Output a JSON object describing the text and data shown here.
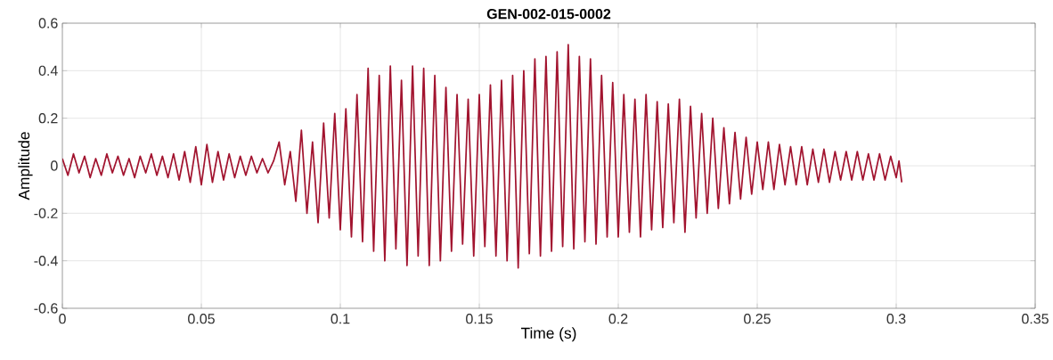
{
  "chart_data": {
    "type": "line",
    "title": "GEN-002-015-0002",
    "xlabel": "Time (s)",
    "ylabel": "Amplitude",
    "xlim": [
      0,
      0.35
    ],
    "ylim": [
      -0.6,
      0.6
    ],
    "xticks": [
      0,
      0.05,
      0.1,
      0.15,
      0.2,
      0.25,
      0.3,
      0.35
    ],
    "yticks": [
      -0.6,
      -0.4,
      -0.2,
      0,
      0.2,
      0.4,
      0.6
    ],
    "grid": true,
    "line_style": "solid",
    "marker": "none",
    "x": [
      0,
      0.002,
      0.004,
      0.006,
      0.008,
      0.01,
      0.012,
      0.014,
      0.016,
      0.018,
      0.02,
      0.022,
      0.024,
      0.026,
      0.028,
      0.03,
      0.032,
      0.034,
      0.036,
      0.038,
      0.04,
      0.042,
      0.044,
      0.046,
      0.048,
      0.05,
      0.052,
      0.054,
      0.056,
      0.058,
      0.06,
      0.062,
      0.064,
      0.066,
      0.068,
      0.07,
      0.072,
      0.074,
      0.076,
      0.078,
      0.08,
      0.082,
      0.084,
      0.086,
      0.088,
      0.09,
      0.092,
      0.094,
      0.096,
      0.098,
      0.1,
      0.102,
      0.104,
      0.106,
      0.108,
      0.11,
      0.112,
      0.114,
      0.116,
      0.118,
      0.12,
      0.122,
      0.124,
      0.126,
      0.128,
      0.13,
      0.132,
      0.134,
      0.136,
      0.138,
      0.14,
      0.142,
      0.144,
      0.146,
      0.148,
      0.15,
      0.152,
      0.154,
      0.156,
      0.158,
      0.16,
      0.162,
      0.164,
      0.166,
      0.168,
      0.17,
      0.172,
      0.174,
      0.176,
      0.178,
      0.18,
      0.182,
      0.184,
      0.186,
      0.188,
      0.19,
      0.192,
      0.194,
      0.196,
      0.198,
      0.2,
      0.202,
      0.204,
      0.206,
      0.208,
      0.21,
      0.212,
      0.214,
      0.216,
      0.218,
      0.22,
      0.222,
      0.224,
      0.226,
      0.228,
      0.23,
      0.232,
      0.234,
      0.236,
      0.238,
      0.24,
      0.242,
      0.244,
      0.246,
      0.248,
      0.25,
      0.252,
      0.254,
      0.256,
      0.258,
      0.26,
      0.262,
      0.264,
      0.266,
      0.268,
      0.27,
      0.272,
      0.274,
      0.276,
      0.278,
      0.28,
      0.282,
      0.284,
      0.286,
      0.288,
      0.29,
      0.292,
      0.294,
      0.296,
      0.298,
      0.3,
      0.301,
      0.302
    ],
    "series": [
      {
        "color": "#a2142f",
        "values": [
          0.03,
          -0.04,
          0.05,
          -0.03,
          0.04,
          -0.05,
          0.03,
          -0.04,
          0.05,
          -0.03,
          0.04,
          -0.04,
          0.03,
          -0.05,
          0.04,
          -0.03,
          0.05,
          -0.04,
          0.04,
          -0.05,
          0.05,
          -0.06,
          0.06,
          -0.07,
          0.08,
          -0.08,
          0.09,
          -0.07,
          0.06,
          -0.06,
          0.05,
          -0.05,
          0.04,
          -0.04,
          0.04,
          -0.03,
          0.03,
          -0.03,
          0.02,
          0.1,
          -0.08,
          0.06,
          -0.15,
          0.15,
          -0.2,
          0.1,
          -0.24,
          0.18,
          -0.22,
          0.22,
          -0.27,
          0.24,
          -0.3,
          0.3,
          -0.32,
          0.41,
          -0.36,
          0.38,
          -0.4,
          0.42,
          -0.35,
          0.36,
          -0.42,
          0.42,
          -0.38,
          0.41,
          -0.42,
          0.38,
          -0.4,
          0.33,
          -0.36,
          0.3,
          -0.33,
          0.28,
          -0.38,
          0.3,
          -0.34,
          0.34,
          -0.38,
          0.36,
          -0.4,
          0.38,
          -0.43,
          0.4,
          -0.37,
          0.45,
          -0.38,
          0.46,
          -0.36,
          0.48,
          -0.34,
          0.51,
          -0.35,
          0.46,
          -0.32,
          0.45,
          -0.33,
          0.38,
          -0.3,
          0.35,
          -0.3,
          0.3,
          -0.28,
          0.28,
          -0.3,
          0.3,
          -0.27,
          0.27,
          -0.26,
          0.26,
          -0.24,
          0.28,
          -0.28,
          0.25,
          -0.22,
          0.22,
          -0.2,
          0.2,
          -0.18,
          0.16,
          -0.16,
          0.14,
          -0.14,
          0.12,
          -0.12,
          0.1,
          -0.1,
          0.1,
          -0.1,
          0.09,
          -0.08,
          0.08,
          -0.08,
          0.08,
          -0.08,
          0.07,
          -0.07,
          0.07,
          -0.07,
          0.06,
          -0.06,
          0.06,
          -0.06,
          0.06,
          -0.06,
          0.05,
          -0.06,
          0.05,
          -0.06,
          0.04,
          -0.05,
          0.02,
          -0.07
        ]
      }
    ]
  }
}
